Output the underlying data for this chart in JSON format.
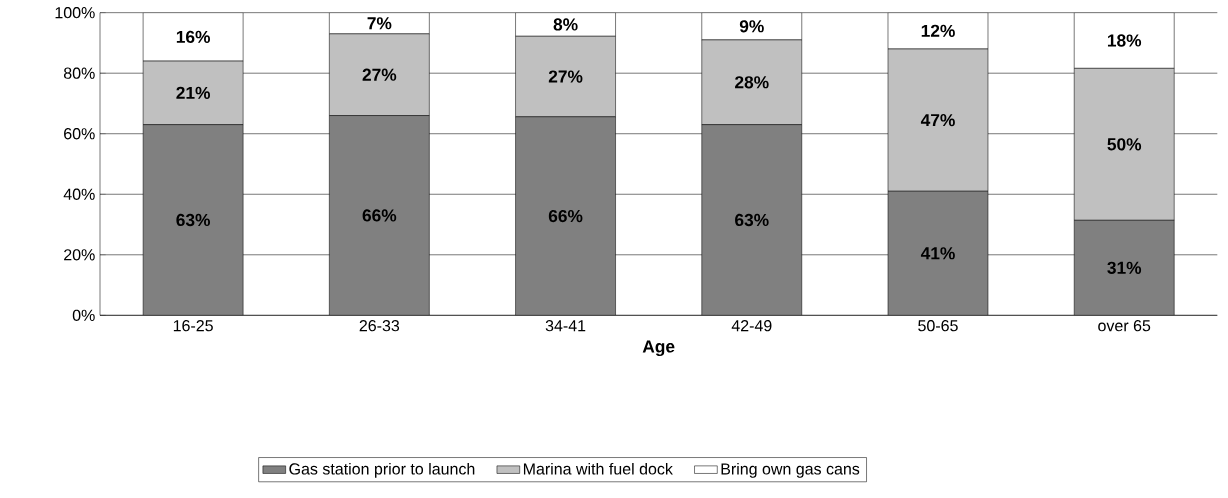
{
  "chart_data": {
    "type": "bar",
    "stacked": true,
    "xlabel": "Age",
    "categories": [
      "16-25",
      "26-33",
      "34-41",
      "42-49",
      "50-65",
      "over 65"
    ],
    "series": [
      {
        "name": "Gas station prior to launch",
        "color": "#808080",
        "values": [
          63,
          66,
          65.6,
          63,
          41,
          31.4
        ],
        "value_labels": [
          "63%",
          "66%",
          "66%",
          "63%",
          "41%",
          "31%"
        ]
      },
      {
        "name": "Marina with fuel dock",
        "color": "#c0c0c0",
        "values": [
          21,
          27,
          26.6,
          28,
          47,
          50.2
        ],
        "value_labels": [
          "21%",
          "27%",
          "27%",
          "28%",
          "47%",
          "50%"
        ]
      },
      {
        "name": "Bring own gas cans",
        "color": "#ffffff",
        "values": [
          16,
          7,
          7.8,
          9,
          12,
          18.4
        ],
        "value_labels": [
          "16%",
          "7%",
          "8%",
          "9%",
          "12%",
          "18%"
        ]
      }
    ],
    "ylim": [
      0,
      100
    ],
    "yticks": [
      {
        "value": 0,
        "label": "0%"
      },
      {
        "value": 20,
        "label": "20%"
      },
      {
        "value": 40,
        "label": "40%"
      },
      {
        "value": 60,
        "label": "60%"
      },
      {
        "value": 80,
        "label": "80%"
      },
      {
        "value": 100,
        "label": "100%"
      }
    ],
    "grid": "y",
    "legend": "bottom"
  }
}
